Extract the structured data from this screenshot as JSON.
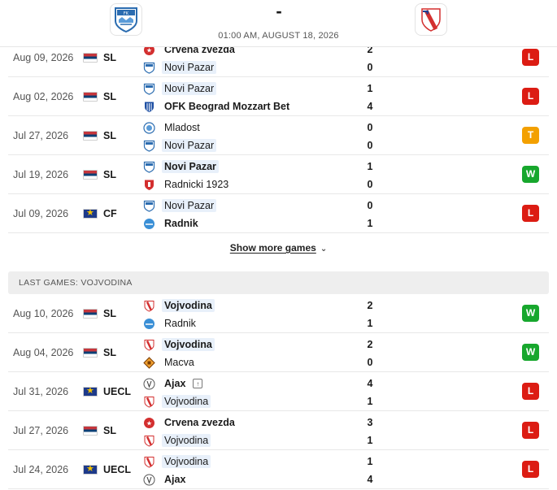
{
  "header": {
    "score_display": "-",
    "datetime": "01:00 AM, AUGUST 18, 2026",
    "home_logo_icon": "novi-pazar-crest-icon",
    "away_logo_icon": "vojvodina-crest-icon"
  },
  "colors": {
    "loss": "#dc1c13",
    "win": "#17a72d",
    "tie": "#f3a000",
    "highlight": "#e8f0fa"
  },
  "home_games": [
    {
      "date": "Aug 09, 2026",
      "flag": "serbia",
      "league": "SL",
      "team1": {
        "name": "Crvena zvezda",
        "logo": "crvena-zvezda",
        "bold": true,
        "highlight": false
      },
      "team2": {
        "name": "Novi Pazar",
        "logo": "novi-pazar",
        "bold": false,
        "highlight": true
      },
      "score1": "2",
      "score2": "0",
      "result": "L"
    },
    {
      "date": "Aug 02, 2026",
      "flag": "serbia",
      "league": "SL",
      "team1": {
        "name": "Novi Pazar",
        "logo": "novi-pazar",
        "bold": false,
        "highlight": true
      },
      "team2": {
        "name": "OFK Beograd Mozzart Bet",
        "logo": "ofk-beograd",
        "bold": true,
        "highlight": false
      },
      "score1": "1",
      "score2": "4",
      "result": "L"
    },
    {
      "date": "Jul 27, 2026",
      "flag": "serbia",
      "league": "SL",
      "team1": {
        "name": "Mladost",
        "logo": "mladost",
        "bold": false,
        "highlight": false
      },
      "team2": {
        "name": "Novi Pazar",
        "logo": "novi-pazar",
        "bold": false,
        "highlight": true
      },
      "score1": "0",
      "score2": "0",
      "result": "T"
    },
    {
      "date": "Jul 19, 2026",
      "flag": "serbia",
      "league": "SL",
      "team1": {
        "name": "Novi Pazar",
        "logo": "novi-pazar",
        "bold": true,
        "highlight": true
      },
      "team2": {
        "name": "Radnicki 1923",
        "logo": "radnicki",
        "bold": false,
        "highlight": false
      },
      "score1": "1",
      "score2": "0",
      "result": "W"
    },
    {
      "date": "Jul 09, 2026",
      "flag": "uefa",
      "league": "CF",
      "team1": {
        "name": "Novi Pazar",
        "logo": "novi-pazar",
        "bold": false,
        "highlight": true
      },
      "team2": {
        "name": "Radnik",
        "logo": "radnik",
        "bold": true,
        "highlight": false
      },
      "score1": "0",
      "score2": "1",
      "result": "L"
    }
  ],
  "show_more_label": "Show more games",
  "section_title": "LAST GAMES: VOJVODINA",
  "away_games": [
    {
      "date": "Aug 10, 2026",
      "flag": "serbia",
      "league": "SL",
      "team1": {
        "name": "Vojvodina",
        "logo": "vojvodina",
        "bold": true,
        "highlight": true
      },
      "team2": {
        "name": "Radnik",
        "logo": "radnik",
        "bold": false,
        "highlight": false
      },
      "score1": "2",
      "score2": "1",
      "result": "W"
    },
    {
      "date": "Aug 04, 2026",
      "flag": "serbia",
      "league": "SL",
      "team1": {
        "name": "Vojvodina",
        "logo": "vojvodina",
        "bold": true,
        "highlight": true
      },
      "team2": {
        "name": "Macva",
        "logo": "macva",
        "bold": false,
        "highlight": false
      },
      "score1": "2",
      "score2": "0",
      "result": "W"
    },
    {
      "date": "Jul 31, 2026",
      "flag": "uefa",
      "league": "UECL",
      "team1": {
        "name": "Ajax",
        "logo": "ajax",
        "bold": true,
        "highlight": false,
        "fav": true
      },
      "team2": {
        "name": "Vojvodina",
        "logo": "vojvodina",
        "bold": false,
        "highlight": true
      },
      "score1": "4",
      "score2": "1",
      "result": "L"
    },
    {
      "date": "Jul 27, 2026",
      "flag": "serbia",
      "league": "SL",
      "team1": {
        "name": "Crvena zvezda",
        "logo": "crvena-zvezda",
        "bold": true,
        "highlight": false
      },
      "team2": {
        "name": "Vojvodina",
        "logo": "vojvodina",
        "bold": false,
        "highlight": true
      },
      "score1": "3",
      "score2": "1",
      "result": "L"
    },
    {
      "date": "Jul 24, 2026",
      "flag": "uefa",
      "league": "UECL",
      "team1": {
        "name": "Vojvodina",
        "logo": "vojvodina",
        "bold": false,
        "highlight": true
      },
      "team2": {
        "name": "Ajax",
        "logo": "ajax",
        "bold": true,
        "highlight": false
      },
      "score1": "1",
      "score2": "4",
      "result": "L"
    }
  ]
}
